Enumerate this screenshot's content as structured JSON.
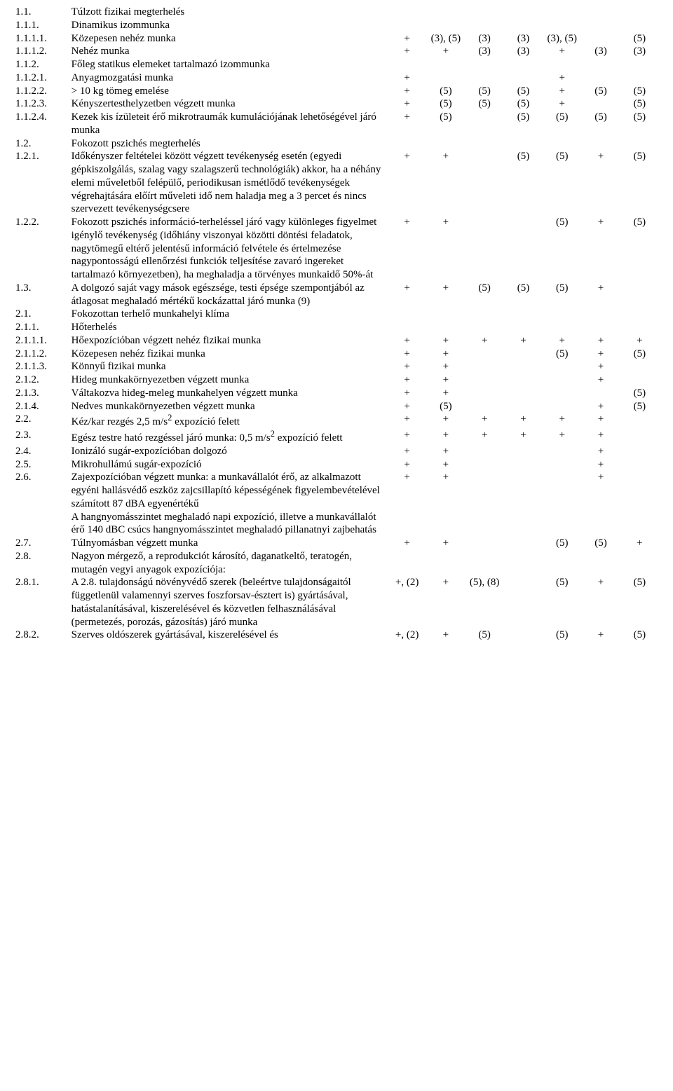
{
  "rows": [
    {
      "num": "1.1.",
      "text": "Túlzott fizikai megterhelés",
      "v": [
        "",
        "",
        "",
        "",
        "",
        "",
        ""
      ]
    },
    {
      "num": "1.1.1.",
      "text": "Dinamikus izommunka",
      "v": [
        "",
        "",
        "",
        "",
        "",
        "",
        ""
      ]
    },
    {
      "num": "1.1.1.1.",
      "text": "Közepesen nehéz munka",
      "v": [
        "+",
        "(3), (5)",
        "(3)",
        "(3)",
        "(3), (5)",
        "",
        "(5)"
      ]
    },
    {
      "num": "1.1.1.2.",
      "text": "Nehéz munka",
      "v": [
        "+",
        "+",
        "(3)",
        "(3)",
        "+",
        "(3)",
        "(3)"
      ]
    },
    {
      "num": "1.1.2.",
      "text": "Főleg statikus elemeket tartalmazó izommunka",
      "v": [
        "",
        "",
        "",
        "",
        "",
        "",
        ""
      ]
    },
    {
      "num": "1.1.2.1.",
      "text": "Anyagmozgatási munka",
      "v": [
        "+",
        "",
        "",
        "",
        "+",
        "",
        ""
      ]
    },
    {
      "num": "1.1.2.2.",
      "text": "> 10 kg tömeg emelése",
      "v": [
        "+",
        "(5)",
        "(5)",
        "(5)",
        "+",
        "(5)",
        "(5)"
      ]
    },
    {
      "num": "1.1.2.3.",
      "text": "Kényszertesthelyzetben végzett munka",
      "v": [
        "+",
        "(5)",
        "(5)",
        "(5)",
        "+",
        "",
        "(5)"
      ]
    },
    {
      "num": "1.1.2.4.",
      "text": "Kezek kis ízületeit érő mikrotraumák kumulációjának lehetőségével járó munka",
      "v": [
        "+",
        "(5)",
        "",
        "(5)",
        "(5)",
        "(5)",
        "(5)"
      ]
    },
    {
      "num": "1.2.",
      "text": "Fokozott pszichés megterhelés",
      "v": [
        "",
        "",
        "",
        "",
        "",
        "",
        ""
      ]
    },
    {
      "num": "1.2.1.",
      "text": "Időkényszer feltételei között végzett tevékenység esetén (egyedi gépkiszolgálás, szalag vagy szalagszerű technológiák) akkor, ha a néhány elemi műveletből felépülő, periodikusan ismétlődő tevékenységek végrehajtására előírt műveleti idő nem haladja meg a 3 percet és nincs szervezett tevékenységcsere",
      "v": [
        "+",
        "+",
        "",
        "(5)",
        "(5)",
        "+",
        "(5)"
      ]
    },
    {
      "num": "1.2.2.",
      "text": "Fokozott pszichés információ-terheléssel járó vagy különleges figyelmet igénylő tevékenység (időhiány viszonyai közötti döntési feladatok, nagytömegű eltérő jelentésű információ felvétele és értelmezése nagypontosságú ellenőrzési funkciók teljesítése zavaró ingereket tartalmazó környezetben), ha meghaladja a törvényes munkaidő 50%-át",
      "v": [
        "+",
        "+",
        "",
        "",
        "(5)",
        "+",
        "(5)"
      ]
    },
    {
      "num": "1.3.",
      "text": "A dolgozó saját vagy mások egészsége, testi épsége szempontjából az átlagosat meghaladó mértékű kockázattal járó munka (9)",
      "v": [
        "+",
        "+",
        "(5)",
        "(5)",
        "(5)",
        "+",
        ""
      ]
    },
    {
      "num": "2.1.",
      "text": "Fokozottan terhelő munkahelyi klíma",
      "v": [
        "",
        "",
        "",
        "",
        "",
        "",
        ""
      ]
    },
    {
      "num": "2.1.1.",
      "text": "Hőterhelés",
      "v": [
        "",
        "",
        "",
        "",
        "",
        "",
        ""
      ]
    },
    {
      "num": "2.1.1.1.",
      "text": "Hőexpozícióban végzett nehéz fizikai munka",
      "v": [
        "+",
        "+",
        "+",
        "+",
        "+",
        "+",
        "+"
      ]
    },
    {
      "num": "2.1.1.2.",
      "text": "Közepesen nehéz fizikai munka",
      "v": [
        "+",
        "+",
        "",
        "",
        "(5)",
        "+",
        "(5)"
      ]
    },
    {
      "num": "2.1.1.3.",
      "text": "Könnyű fizikai munka",
      "v": [
        "+",
        "+",
        "",
        "",
        "",
        "+",
        ""
      ]
    },
    {
      "num": "2.1.2.",
      "text": "Hideg munkakörnyezetben végzett munka",
      "v": [
        "+",
        "+",
        "",
        "",
        "",
        "+",
        ""
      ]
    },
    {
      "num": "2.1.3.",
      "text": "Váltakozva hideg-meleg munkahelyen végzett munka",
      "v": [
        "+",
        "+",
        "",
        "",
        "",
        "",
        "(5)"
      ]
    },
    {
      "num": "2.1.4.",
      "text": "Nedves munkakörnyezetben végzett munka",
      "v": [
        "+",
        "(5)",
        "",
        "",
        "",
        "+",
        "(5)"
      ]
    },
    {
      "num": "2.2.",
      "text": "Kéz/kar rezgés 2,5 m/s<sup>2</sup> expozíció felett",
      "v": [
        "+",
        "+",
        "+",
        "+",
        "+",
        "+",
        ""
      ]
    },
    {
      "num": "2.3.",
      "text": "Egész testre ható rezgéssel járó munka: 0,5 m/s<sup>2</sup> expozíció felett",
      "v": [
        "+",
        "+",
        "+",
        "+",
        "+",
        "+",
        ""
      ]
    },
    {
      "num": "2.4.",
      "text": "Ionizáló sugár-expozícióban dolgozó",
      "v": [
        "+",
        "+",
        "",
        "",
        "",
        "+",
        ""
      ]
    },
    {
      "num": "2.5.",
      "text": "Mikrohullámú sugár-expozíció",
      "v": [
        "+",
        "+",
        "",
        "",
        "",
        "+",
        ""
      ]
    },
    {
      "num": "2.6.",
      "text": "Zajexpozícióban végzett munka: a munkavállalót érő, az alkalmazott egyéni hallásvédő eszköz zajcsillapító képességének figyelembevételével számított 87 dBA egyenértékű\nA hangnyomásszintet meghaladó napi expozíció, illetve a munkavállalót érő 140 dBC csúcs hangnyomásszintet meghaladó pillanatnyi zajbehatás",
      "v": [
        "+",
        "+",
        "",
        "",
        "",
        "+",
        ""
      ]
    },
    {
      "num": "2.7.",
      "text": "Túlnyomásban végzett munka",
      "v": [
        "+",
        "+",
        "",
        "",
        "(5)",
        "(5)",
        "+"
      ]
    },
    {
      "num": "2.8.",
      "text": "Nagyon mérgező, a reprodukciót károsító, daganatkeltő, teratogén, mutagén vegyi anyagok expozíciója:",
      "v": [
        "",
        "",
        "",
        "",
        "",
        "",
        ""
      ]
    },
    {
      "num": "2.8.1.",
      "text": "A 2.8. tulajdonságú növényvédő szerek (beleértve tulajdonságaitól függetlenül valamennyi szerves foszforsav-észtert is) gyártásával, hatástalanításával, kiszerelésével és közvetlen felhasználásával (permetezés, porozás, gázosítás) járó munka",
      "v": [
        "+, (2)",
        "+",
        "(5), (8)",
        "",
        "(5)",
        "+",
        "(5)"
      ]
    },
    {
      "num": "2.8.2.",
      "text": "Szerves oldószerek gyártásával, kiszerelésével és",
      "v": [
        "+, (2)",
        "+",
        "(5)",
        "",
        "(5)",
        "+",
        "(5)"
      ]
    }
  ]
}
